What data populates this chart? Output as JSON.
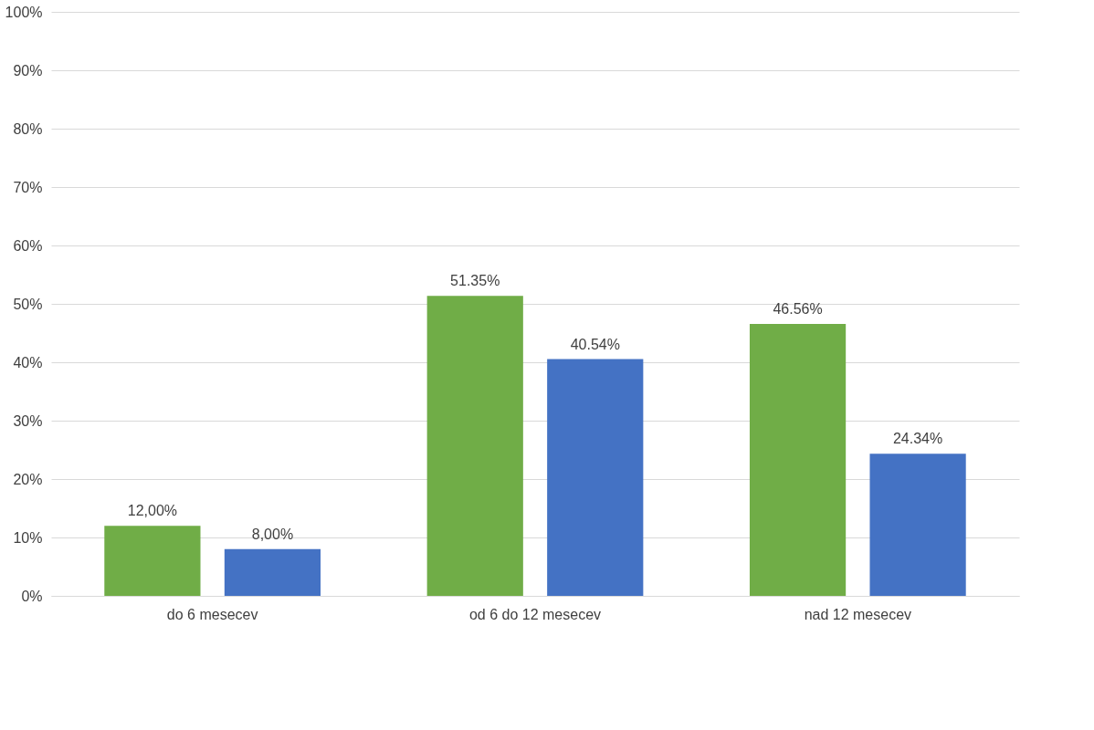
{
  "chart_data": {
    "type": "bar",
    "categories": [
      "do 6 mesecev",
      "od 6 do 12 mesecev",
      "nad 12 mesecev"
    ],
    "series": [
      {
        "color": "#70ad47",
        "values": [
          12,
          51.35,
          46.56
        ],
        "value_labels": [
          "12,00%",
          "51.35%",
          "46.56%"
        ]
      },
      {
        "color": "#4472c4",
        "values": [
          8,
          40.54,
          24.34
        ],
        "value_labels": [
          "8,00%",
          "40.54%",
          "24.34%"
        ]
      }
    ],
    "ylim": [
      0,
      100
    ],
    "yticks": [
      {
        "value": 0,
        "label": "0%"
      },
      {
        "value": 10,
        "label": "10%"
      },
      {
        "value": 20,
        "label": "20%"
      },
      {
        "value": 30,
        "label": "30%"
      },
      {
        "value": 40,
        "label": "40%"
      },
      {
        "value": 50,
        "label": "50%"
      },
      {
        "value": 60,
        "label": "60%"
      },
      {
        "value": 70,
        "label": "70%"
      },
      {
        "value": 80,
        "label": "80%"
      },
      {
        "value": 90,
        "label": "90%"
      },
      {
        "value": 100,
        "label": "100%"
      }
    ],
    "grid": "y",
    "legend": false
  }
}
